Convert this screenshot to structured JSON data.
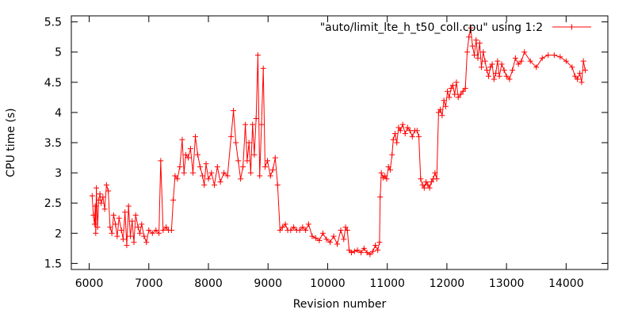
{
  "chart_data": {
    "type": "line",
    "xlabel": "Revision number",
    "ylabel": "CPU time (s)",
    "xlim": [
      5700,
      14700
    ],
    "ylim": [
      1.4,
      5.6
    ],
    "xticks": [
      6000,
      7000,
      8000,
      9000,
      10000,
      11000,
      12000,
      13000,
      14000
    ],
    "yticks": [
      1.5,
      2,
      2.5,
      3,
      3.5,
      4,
      4.5,
      5,
      5.5
    ],
    "xtick_labels": [
      "6000",
      "7000",
      "8000",
      "9000",
      "10000",
      "11000",
      "12000",
      "13000",
      "14000"
    ],
    "ytick_labels": [
      "1.5",
      "2",
      "2.5",
      "3",
      "3.5",
      "4",
      "4.5",
      "5",
      "5.5"
    ],
    "grid": false,
    "legend_position": "top-right",
    "series": [
      {
        "name": "\"auto/limit_lte_h_t50_coll.cpu\" using 1:2",
        "color": "#ff0000",
        "marker": "plus",
        "points": [
          [
            6050,
            2.62
          ],
          [
            6070,
            2.3
          ],
          [
            6090,
            2.15
          ],
          [
            6100,
            2.45
          ],
          [
            6110,
            2.0
          ],
          [
            6120,
            2.75
          ],
          [
            6140,
            2.1
          ],
          [
            6160,
            2.55
          ],
          [
            6180,
            2.65
          ],
          [
            6200,
            2.5
          ],
          [
            6230,
            2.6
          ],
          [
            6260,
            2.4
          ],
          [
            6290,
            2.8
          ],
          [
            6320,
            2.7
          ],
          [
            6350,
            2.1
          ],
          [
            6380,
            2.0
          ],
          [
            6410,
            2.3
          ],
          [
            6440,
            2.15
          ],
          [
            6470,
            1.95
          ],
          [
            6500,
            2.25
          ],
          [
            6540,
            2.05
          ],
          [
            6570,
            1.9
          ],
          [
            6600,
            2.35
          ],
          [
            6630,
            1.8
          ],
          [
            6660,
            2.45
          ],
          [
            6690,
            1.95
          ],
          [
            6720,
            2.2
          ],
          [
            6750,
            1.85
          ],
          [
            6780,
            2.3
          ],
          [
            6820,
            2.1
          ],
          [
            6850,
            2.0
          ],
          [
            6880,
            2.15
          ],
          [
            6920,
            1.95
          ],
          [
            6960,
            1.85
          ],
          [
            7000,
            2.05
          ],
          [
            7060,
            2.0
          ],
          [
            7120,
            2.05
          ],
          [
            7170,
            2.0
          ],
          [
            7200,
            3.2
          ],
          [
            7240,
            2.05
          ],
          [
            7290,
            2.1
          ],
          [
            7330,
            2.05
          ],
          [
            7380,
            2.05
          ],
          [
            7410,
            2.55
          ],
          [
            7440,
            2.95
          ],
          [
            7480,
            2.9
          ],
          [
            7520,
            3.1
          ],
          [
            7560,
            3.55
          ],
          [
            7590,
            3.0
          ],
          [
            7620,
            3.3
          ],
          [
            7660,
            3.25
          ],
          [
            7700,
            3.4
          ],
          [
            7740,
            3.0
          ],
          [
            7780,
            3.6
          ],
          [
            7820,
            3.3
          ],
          [
            7860,
            3.1
          ],
          [
            7900,
            2.95
          ],
          [
            7930,
            2.8
          ],
          [
            7960,
            3.15
          ],
          [
            8000,
            2.9
          ],
          [
            8050,
            3.0
          ],
          [
            8100,
            2.8
          ],
          [
            8150,
            3.1
          ],
          [
            8200,
            2.85
          ],
          [
            8260,
            3.0
          ],
          [
            8320,
            2.95
          ],
          [
            8380,
            3.6
          ],
          [
            8420,
            4.03
          ],
          [
            8460,
            3.5
          ],
          [
            8500,
            3.2
          ],
          [
            8540,
            2.9
          ],
          [
            8580,
            3.1
          ],
          [
            8620,
            3.8
          ],
          [
            8650,
            3.2
          ],
          [
            8680,
            3.5
          ],
          [
            8710,
            3.0
          ],
          [
            8740,
            3.8
          ],
          [
            8770,
            3.3
          ],
          [
            8800,
            3.9
          ],
          [
            8830,
            4.95
          ],
          [
            8860,
            2.95
          ],
          [
            8890,
            3.8
          ],
          [
            8920,
            4.73
          ],
          [
            8950,
            3.1
          ],
          [
            8990,
            3.2
          ],
          [
            9040,
            2.95
          ],
          [
            9080,
            3.05
          ],
          [
            9120,
            3.25
          ],
          [
            9160,
            2.8
          ],
          [
            9200,
            2.05
          ],
          [
            9240,
            2.1
          ],
          [
            9290,
            2.15
          ],
          [
            9330,
            2.05
          ],
          [
            9380,
            2.05
          ],
          [
            9430,
            2.1
          ],
          [
            9480,
            2.05
          ],
          [
            9530,
            2.05
          ],
          [
            9580,
            2.1
          ],
          [
            9630,
            2.05
          ],
          [
            9680,
            2.15
          ],
          [
            9740,
            1.95
          ],
          [
            9800,
            1.92
          ],
          [
            9860,
            1.88
          ],
          [
            9920,
            2.0
          ],
          [
            9980,
            1.9
          ],
          [
            10040,
            1.85
          ],
          [
            10100,
            1.95
          ],
          [
            10160,
            1.82
          ],
          [
            10220,
            2.05
          ],
          [
            10270,
            1.9
          ],
          [
            10300,
            2.1
          ],
          [
            10330,
            2.05
          ],
          [
            10360,
            1.72
          ],
          [
            10400,
            1.68
          ],
          [
            10450,
            1.7
          ],
          [
            10500,
            1.72
          ],
          [
            10560,
            1.68
          ],
          [
            10610,
            1.75
          ],
          [
            10660,
            1.68
          ],
          [
            10710,
            1.65
          ],
          [
            10760,
            1.7
          ],
          [
            10800,
            1.8
          ],
          [
            10840,
            1.72
          ],
          [
            10870,
            1.85
          ],
          [
            10880,
            2.6
          ],
          [
            10900,
            3.0
          ],
          [
            10930,
            2.92
          ],
          [
            10960,
            2.95
          ],
          [
            10990,
            2.9
          ],
          [
            11020,
            3.1
          ],
          [
            11050,
            3.05
          ],
          [
            11080,
            3.3
          ],
          [
            11100,
            3.55
          ],
          [
            11130,
            3.65
          ],
          [
            11160,
            3.5
          ],
          [
            11190,
            3.75
          ],
          [
            11220,
            3.7
          ],
          [
            11260,
            3.8
          ],
          [
            11300,
            3.65
          ],
          [
            11340,
            3.75
          ],
          [
            11380,
            3.7
          ],
          [
            11420,
            3.6
          ],
          [
            11460,
            3.7
          ],
          [
            11500,
            3.7
          ],
          [
            11530,
            3.6
          ],
          [
            11560,
            2.9
          ],
          [
            11590,
            2.8
          ],
          [
            11620,
            2.75
          ],
          [
            11650,
            2.85
          ],
          [
            11680,
            2.8
          ],
          [
            11710,
            2.75
          ],
          [
            11740,
            2.85
          ],
          [
            11770,
            2.9
          ],
          [
            11800,
            3.0
          ],
          [
            11830,
            2.9
          ],
          [
            11860,
            4.0
          ],
          [
            11890,
            4.05
          ],
          [
            11920,
            3.95
          ],
          [
            11950,
            4.2
          ],
          [
            11980,
            4.1
          ],
          [
            12010,
            4.35
          ],
          [
            12040,
            4.25
          ],
          [
            12070,
            4.4
          ],
          [
            12100,
            4.45
          ],
          [
            12130,
            4.3
          ],
          [
            12160,
            4.5
          ],
          [
            12190,
            4.25
          ],
          [
            12230,
            4.3
          ],
          [
            12270,
            4.35
          ],
          [
            12310,
            4.4
          ],
          [
            12340,
            5.0
          ],
          [
            12370,
            5.25
          ],
          [
            12400,
            5.4
          ],
          [
            12430,
            5.1
          ],
          [
            12460,
            4.95
          ],
          [
            12490,
            5.2
          ],
          [
            12520,
            4.9
          ],
          [
            12550,
            5.15
          ],
          [
            12580,
            4.75
          ],
          [
            12610,
            5.0
          ],
          [
            12640,
            4.85
          ],
          [
            12670,
            4.7
          ],
          [
            12700,
            4.6
          ],
          [
            12730,
            4.75
          ],
          [
            12760,
            4.8
          ],
          [
            12790,
            4.55
          ],
          [
            12820,
            4.65
          ],
          [
            12850,
            4.85
          ],
          [
            12880,
            4.6
          ],
          [
            12920,
            4.8
          ],
          [
            12960,
            4.7
          ],
          [
            13000,
            4.6
          ],
          [
            13050,
            4.55
          ],
          [
            13100,
            4.7
          ],
          [
            13150,
            4.9
          ],
          [
            13200,
            4.8
          ],
          [
            13250,
            4.85
          ],
          [
            13300,
            5.0
          ],
          [
            13400,
            4.85
          ],
          [
            13500,
            4.75
          ],
          [
            13600,
            4.9
          ],
          [
            13700,
            4.95
          ],
          [
            13800,
            4.95
          ],
          [
            13900,
            4.92
          ],
          [
            14000,
            4.85
          ],
          [
            14100,
            4.75
          ],
          [
            14150,
            4.6
          ],
          [
            14190,
            4.55
          ],
          [
            14230,
            4.65
          ],
          [
            14260,
            4.5
          ],
          [
            14290,
            4.85
          ],
          [
            14320,
            4.7
          ]
        ]
      }
    ]
  }
}
